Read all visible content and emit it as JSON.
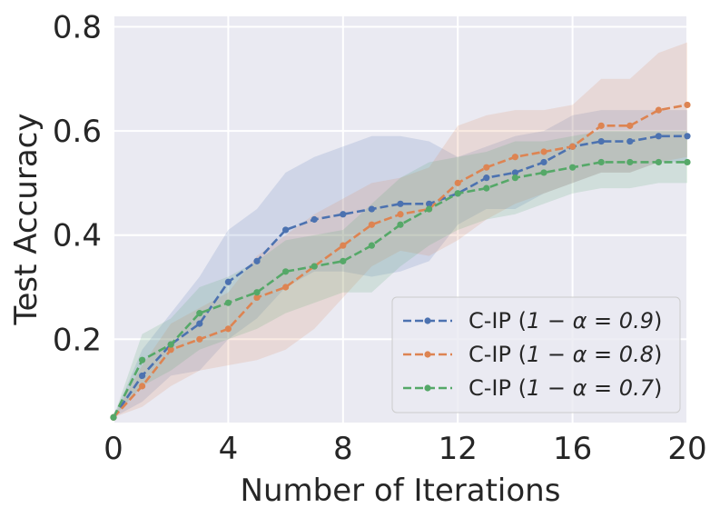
{
  "chart_data": {
    "type": "line",
    "title": "",
    "xlabel": "Number of Iterations",
    "ylabel": "Test Accuracy",
    "xlim": [
      0,
      20
    ],
    "ylim": [
      0.04,
      0.82
    ],
    "xticks": [
      0,
      4,
      8,
      12,
      16,
      20
    ],
    "xtick_labels": [
      "0",
      "4",
      "8",
      "12",
      "16",
      "20"
    ],
    "yticks": [
      0.2,
      0.4,
      0.6,
      0.8
    ],
    "ytick_labels": [
      "0.2",
      "0.4",
      "0.6",
      "0.8"
    ],
    "grid": true,
    "legend_position": "lower-right",
    "x": [
      0,
      1,
      2,
      3,
      4,
      5,
      6,
      7,
      8,
      9,
      10,
      11,
      12,
      13,
      14,
      15,
      16,
      17,
      18,
      19,
      20
    ],
    "series": [
      {
        "name": "C-IP (1 − α = 0.9)",
        "legend_prefix": "C-IP (",
        "legend_math": "1 − α = 0.9",
        "legend_suffix": ")",
        "color": "#4c72b0",
        "values": [
          0.05,
          0.13,
          0.19,
          0.23,
          0.31,
          0.35,
          0.41,
          0.43,
          0.44,
          0.45,
          0.46,
          0.46,
          0.48,
          0.51,
          0.52,
          0.54,
          0.57,
          0.58,
          0.58,
          0.59,
          0.59
        ],
        "lower": [
          0.05,
          0.08,
          0.13,
          0.14,
          0.2,
          0.24,
          0.3,
          0.33,
          0.33,
          0.32,
          0.33,
          0.35,
          0.42,
          0.45,
          0.45,
          0.48,
          0.5,
          0.52,
          0.52,
          0.54,
          0.54
        ],
        "upper": [
          0.05,
          0.18,
          0.25,
          0.32,
          0.41,
          0.45,
          0.52,
          0.55,
          0.57,
          0.59,
          0.59,
          0.58,
          0.55,
          0.57,
          0.59,
          0.6,
          0.63,
          0.64,
          0.64,
          0.64,
          0.64
        ]
      },
      {
        "name": "C-IP (1 − α = 0.8)",
        "legend_prefix": "C-IP (",
        "legend_math": "1 − α = 0.8",
        "legend_suffix": ")",
        "color": "#dd8452",
        "values": [
          0.05,
          0.11,
          0.18,
          0.2,
          0.22,
          0.28,
          0.3,
          0.34,
          0.38,
          0.42,
          0.44,
          0.45,
          0.5,
          0.53,
          0.55,
          0.56,
          0.57,
          0.61,
          0.61,
          0.64,
          0.65
        ],
        "lower": [
          0.05,
          0.07,
          0.11,
          0.14,
          0.15,
          0.16,
          0.18,
          0.22,
          0.28,
          0.34,
          0.37,
          0.36,
          0.39,
          0.43,
          0.46,
          0.48,
          0.5,
          0.52,
          0.52,
          0.54,
          0.55
        ],
        "upper": [
          0.05,
          0.15,
          0.23,
          0.26,
          0.29,
          0.36,
          0.4,
          0.44,
          0.47,
          0.5,
          0.51,
          0.53,
          0.61,
          0.63,
          0.64,
          0.64,
          0.65,
          0.7,
          0.7,
          0.75,
          0.77
        ]
      },
      {
        "name": "C-IP (1 − α = 0.7)",
        "legend_prefix": "C-IP (",
        "legend_math": "1 − α = 0.7",
        "legend_suffix": ")",
        "color": "#55a868",
        "values": [
          0.05,
          0.16,
          0.19,
          0.25,
          0.27,
          0.29,
          0.33,
          0.34,
          0.35,
          0.38,
          0.42,
          0.45,
          0.48,
          0.49,
          0.51,
          0.52,
          0.53,
          0.54,
          0.54,
          0.54,
          0.54
        ],
        "lower": [
          0.05,
          0.11,
          0.14,
          0.18,
          0.2,
          0.22,
          0.25,
          0.27,
          0.29,
          0.29,
          0.34,
          0.38,
          0.41,
          0.43,
          0.44,
          0.46,
          0.48,
          0.49,
          0.49,
          0.5,
          0.5
        ],
        "upper": [
          0.05,
          0.21,
          0.24,
          0.3,
          0.32,
          0.35,
          0.39,
          0.4,
          0.41,
          0.46,
          0.51,
          0.54,
          0.55,
          0.56,
          0.58,
          0.58,
          0.59,
          0.6,
          0.6,
          0.6,
          0.6
        ]
      }
    ]
  }
}
